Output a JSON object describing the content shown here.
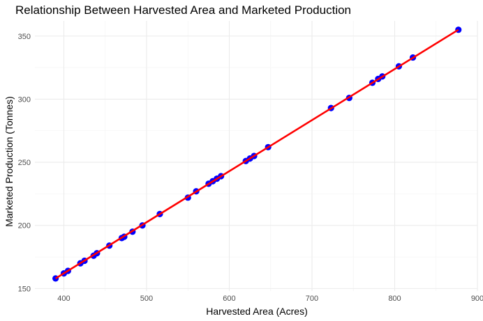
{
  "chart_data": {
    "type": "scatter",
    "title": "Relationship Between Harvested Area and Marketed Production",
    "xlabel": "Harvested Area (Acres)",
    "ylabel": "Marketed Production (Tonnes)",
    "xlim": [
      365,
      900
    ],
    "ylim": [
      148,
      362
    ],
    "xticks": [
      400,
      500,
      600,
      700,
      800,
      900
    ],
    "yticks": [
      150,
      200,
      250,
      300,
      350
    ],
    "xtick_labels": [
      "400",
      "500",
      "600",
      "700",
      "800",
      "900"
    ],
    "ytick_labels": [
      "150",
      "200",
      "250",
      "300",
      "350"
    ],
    "grid": true,
    "point_color": "#0000ff",
    "fit_line_color": "#ff0000",
    "fit_line": {
      "x": [
        390,
        877
      ],
      "y": [
        158,
        355
      ]
    },
    "points": [
      {
        "x": 390,
        "y": 158
      },
      {
        "x": 400,
        "y": 162
      },
      {
        "x": 405,
        "y": 164
      },
      {
        "x": 420,
        "y": 170
      },
      {
        "x": 425,
        "y": 172
      },
      {
        "x": 436,
        "y": 176
      },
      {
        "x": 440,
        "y": 178
      },
      {
        "x": 455,
        "y": 184
      },
      {
        "x": 470,
        "y": 190
      },
      {
        "x": 473,
        "y": 191
      },
      {
        "x": 483,
        "y": 195
      },
      {
        "x": 495,
        "y": 200
      },
      {
        "x": 516,
        "y": 209
      },
      {
        "x": 550,
        "y": 222
      },
      {
        "x": 560,
        "y": 227
      },
      {
        "x": 575,
        "y": 233
      },
      {
        "x": 580,
        "y": 235
      },
      {
        "x": 585,
        "y": 237
      },
      {
        "x": 590,
        "y": 239
      },
      {
        "x": 620,
        "y": 251
      },
      {
        "x": 625,
        "y": 253
      },
      {
        "x": 630,
        "y": 255
      },
      {
        "x": 647,
        "y": 262
      },
      {
        "x": 723,
        "y": 293
      },
      {
        "x": 745,
        "y": 301
      },
      {
        "x": 773,
        "y": 313
      },
      {
        "x": 780,
        "y": 316
      },
      {
        "x": 785,
        "y": 318
      },
      {
        "x": 805,
        "y": 326
      },
      {
        "x": 822,
        "y": 333
      },
      {
        "x": 877,
        "y": 355
      }
    ]
  }
}
